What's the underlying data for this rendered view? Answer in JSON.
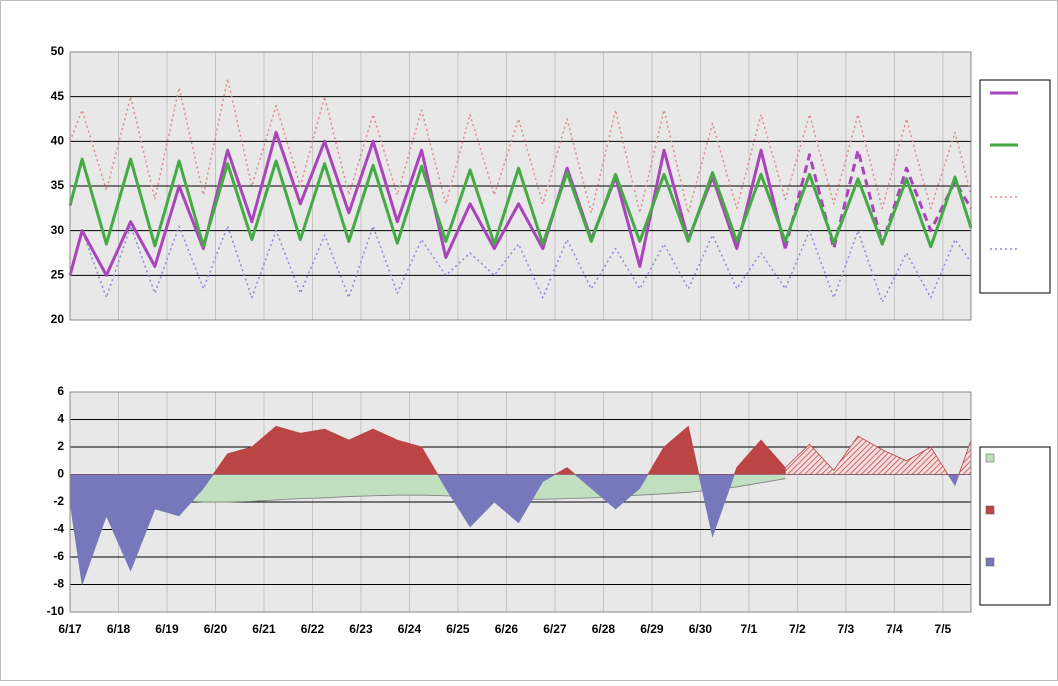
{
  "chart_data": [
    {
      "type": "line",
      "x": [
        0,
        0.25,
        0.75,
        1.25,
        1.75,
        2.25,
        2.75,
        3.25,
        3.75,
        4.25,
        4.75,
        5.25,
        5.75,
        6.25,
        6.75,
        7.25,
        7.75,
        8.25,
        8.75,
        9.25,
        9.75,
        10.25,
        10.75,
        11.25,
        11.75,
        12.25,
        12.75,
        13.25,
        13.75,
        14.25,
        14.75,
        15.25,
        15.75,
        16.25,
        16.75,
        17.25,
        17.75,
        18.25,
        18.58
      ],
      "xlim": [
        0,
        18.58
      ],
      "xticks": [
        {
          "value": 0,
          "label": "6/17"
        },
        {
          "value": 1,
          "label": "6/18"
        },
        {
          "value": 2,
          "label": "6/19"
        },
        {
          "value": 3,
          "label": "6/20"
        },
        {
          "value": 4,
          "label": "6/21"
        },
        {
          "value": 5,
          "label": "6/22"
        },
        {
          "value": 6,
          "label": "6/23"
        },
        {
          "value": 7,
          "label": "6/24"
        },
        {
          "value": 8,
          "label": "6/25"
        },
        {
          "value": 9,
          "label": "6/26"
        },
        {
          "value": 10,
          "label": "6/27"
        },
        {
          "value": 11,
          "label": "6/28"
        },
        {
          "value": 12,
          "label": "6/29"
        },
        {
          "value": 13,
          "label": "6/30"
        },
        {
          "value": 14,
          "label": "7/1"
        },
        {
          "value": 15,
          "label": "7/2"
        },
        {
          "value": 16,
          "label": "7/3"
        },
        {
          "value": 17,
          "label": "7/4"
        },
        {
          "value": 18,
          "label": "7/5"
        }
      ],
      "ylim": [
        20,
        50
      ],
      "yticks": [
        20,
        25,
        30,
        35,
        40,
        45,
        50
      ],
      "grid": true,
      "series": [
        {
          "color": "#dd8888",
          "style": "dotted",
          "values": [
            40,
            43.5,
            34.5,
            45,
            33.5,
            46,
            34,
            47,
            35,
            44,
            35,
            45,
            34,
            43,
            34,
            43.5,
            33,
            43,
            34,
            42.5,
            33,
            42.5,
            32,
            43.5,
            32,
            43.5,
            32,
            42,
            32.5,
            43,
            33.5,
            43,
            33,
            43,
            32.5,
            42.5,
            32.5,
            41,
            34
          ]
        },
        {
          "color": "#8888dd",
          "style": "dotted",
          "values": [
            25,
            30,
            22.5,
            30.5,
            23,
            30.5,
            23.5,
            30.5,
            22.5,
            30,
            23,
            29.5,
            22.5,
            30.5,
            23,
            29,
            25,
            27.5,
            25,
            28.5,
            22.5,
            29,
            23.5,
            28,
            23.5,
            28.5,
            23.5,
            29.5,
            23.5,
            27.5,
            23.5,
            30,
            22.5,
            30,
            22,
            27.5,
            22.5,
            29,
            26.5
          ]
        },
        {
          "color": "#aa44bb",
          "style": "solid",
          "values": [
            25,
            30,
            25,
            31,
            26,
            35,
            28,
            39,
            31,
            41,
            33,
            40,
            32,
            40,
            31,
            39,
            27,
            33,
            28,
            33,
            28,
            37,
            29,
            36,
            26,
            39,
            29,
            36,
            28,
            39,
            28,
            null,
            null,
            null,
            null,
            null,
            null,
            null,
            null
          ]
        },
        {
          "color": "#aa44bb",
          "style": "dashed",
          "values": [
            null,
            null,
            null,
            null,
            null,
            null,
            null,
            null,
            null,
            null,
            null,
            null,
            null,
            null,
            null,
            null,
            null,
            null,
            null,
            null,
            null,
            null,
            null,
            null,
            null,
            null,
            null,
            null,
            null,
            null,
            28,
            38.5,
            28,
            39,
            28.5,
            37,
            30,
            35.5,
            32.5
          ]
        },
        {
          "color": "#44aa44",
          "style": "solid",
          "values": [
            32.8,
            38,
            28.5,
            38,
            28.3,
            37.8,
            28.3,
            37.5,
            29,
            37.8,
            29,
            37.5,
            28.8,
            37.3,
            28.6,
            37.2,
            28.8,
            36.8,
            28.5,
            37,
            28.5,
            36.5,
            28.8,
            36.3,
            28.8,
            36.3,
            28.8,
            36.5,
            28.8,
            36.3,
            28.8,
            36.3,
            28.6,
            35.8,
            28.5,
            35.8,
            28.2,
            36,
            30.3
          ]
        }
      ]
    },
    {
      "type": "area",
      "x": [
        0,
        0.25,
        0.75,
        1.25,
        1.75,
        2.25,
        2.75,
        3.25,
        3.75,
        4.25,
        4.75,
        5.25,
        5.75,
        6.25,
        6.75,
        7.25,
        7.75,
        8.25,
        8.75,
        9.25,
        9.75,
        10.25,
        10.75,
        11.25,
        11.75,
        12.25,
        12.75,
        13.25,
        13.75,
        14.25,
        14.75,
        15.25,
        15.75,
        16.25,
        16.75,
        17.25,
        17.75,
        18.25,
        18.58
      ],
      "xlim": [
        0,
        18.58
      ],
      "xticks": [
        {
          "value": 0,
          "label": "6/17"
        },
        {
          "value": 1,
          "label": "6/18"
        },
        {
          "value": 2,
          "label": "6/19"
        },
        {
          "value": 3,
          "label": "6/20"
        },
        {
          "value": 4,
          "label": "6/21"
        },
        {
          "value": 5,
          "label": "6/22"
        },
        {
          "value": 6,
          "label": "6/23"
        },
        {
          "value": 7,
          "label": "6/24"
        },
        {
          "value": 8,
          "label": "6/25"
        },
        {
          "value": 9,
          "label": "6/26"
        },
        {
          "value": 10,
          "label": "6/27"
        },
        {
          "value": 11,
          "label": "6/28"
        },
        {
          "value": 12,
          "label": "6/29"
        },
        {
          "value": 13,
          "label": "6/30"
        },
        {
          "value": 14,
          "label": "7/1"
        },
        {
          "value": 15,
          "label": "7/2"
        },
        {
          "value": 16,
          "label": "7/3"
        },
        {
          "value": 17,
          "label": "7/4"
        },
        {
          "value": 18,
          "label": "7/5"
        }
      ],
      "ylim": [
        -10,
        6
      ],
      "yticks": [
        -10,
        -8,
        -6,
        -4,
        -2,
        0,
        2,
        4,
        6
      ],
      "grid": true,
      "series": [
        {
          "color": "#c0e0c0",
          "line_color": "#888888",
          "values": [
            -1.5,
            -1.5,
            -1.6,
            -1.7,
            -1.8,
            -1.9,
            -2,
            -2,
            -1.95,
            -1.85,
            -1.75,
            -1.7,
            -1.6,
            -1.55,
            -1.5,
            -1.5,
            -1.55,
            -1.65,
            -1.75,
            -1.8,
            -1.8,
            -1.75,
            -1.7,
            -1.6,
            -1.5,
            -1.4,
            -1.3,
            -1.1,
            -0.9,
            -0.6,
            -0.3,
            null,
            null,
            null,
            null,
            null,
            null,
            null,
            null
          ]
        },
        {
          "color": "#bb4444",
          "negative_color": "#7777bb",
          "hatched": false,
          "values": [
            -2,
            -8,
            -3,
            -7,
            -2.5,
            -3,
            -1,
            1.5,
            2,
            3.5,
            3,
            3.3,
            2.5,
            3.3,
            2.5,
            2,
            -1,
            -3.8,
            -2,
            -3.5,
            -0.5,
            0.5,
            -1,
            -2.5,
            -1,
            2,
            3.5,
            -4.5,
            0.5,
            2.5,
            0.5,
            null,
            null,
            null,
            null,
            null,
            null,
            null,
            null
          ]
        },
        {
          "color": "#bb4444",
          "negative_color": "#7777bb",
          "hatched": true,
          "values": [
            null,
            null,
            null,
            null,
            null,
            null,
            null,
            null,
            null,
            null,
            null,
            null,
            null,
            null,
            null,
            null,
            null,
            null,
            null,
            null,
            null,
            null,
            null,
            null,
            null,
            null,
            null,
            null,
            null,
            null,
            0.5,
            2.2,
            0.3,
            2.8,
            1.8,
            1,
            2,
            -0.8,
            2.5
          ]
        }
      ]
    }
  ]
}
